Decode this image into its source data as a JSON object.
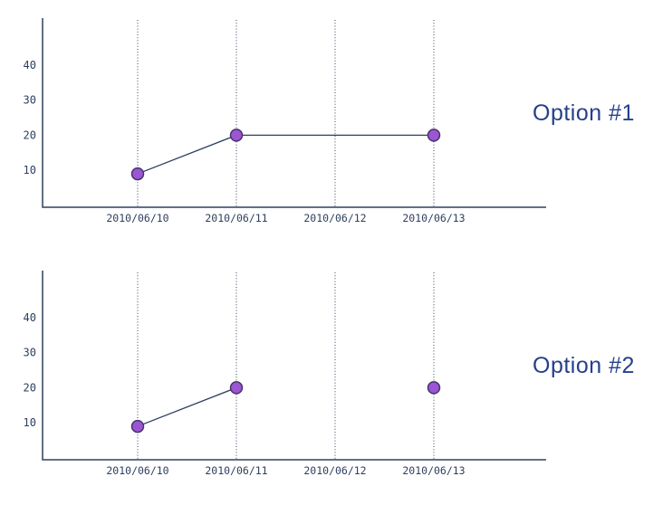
{
  "colors": {
    "axis": "#2e405f",
    "gridline": "#33445f",
    "series_line": "#2e405f",
    "tick_text": "#2e3f5e",
    "point_fill": "#9c55d4",
    "point_stroke": "#463569",
    "option_text": "#26418a"
  },
  "chart_data": [
    {
      "type": "line",
      "label": "Option #1",
      "x_categories": [
        "2010/06/10",
        "2010/06/11",
        "2010/06/12",
        "2010/06/13"
      ],
      "y_ticks": [
        10,
        20,
        30,
        40
      ],
      "ylim": [
        0,
        53
      ],
      "grid": "vertical-dotted",
      "legend": "none",
      "points": [
        {
          "x": "2010/06/10",
          "y": 9
        },
        {
          "x": "2010/06/11",
          "y": 20
        },
        {
          "x": "2010/06/13",
          "y": 20
        }
      ],
      "connections": [
        [
          0,
          1
        ],
        [
          1,
          2
        ]
      ]
    },
    {
      "type": "line",
      "label": "Option #2",
      "x_categories": [
        "2010/06/10",
        "2010/06/11",
        "2010/06/12",
        "2010/06/13"
      ],
      "y_ticks": [
        10,
        20,
        30,
        40
      ],
      "ylim": [
        0,
        53
      ],
      "grid": "vertical-dotted",
      "legend": "none",
      "points": [
        {
          "x": "2010/06/10",
          "y": 9
        },
        {
          "x": "2010/06/11",
          "y": 20
        },
        {
          "x": "2010/06/13",
          "y": 20
        }
      ],
      "connections": [
        [
          0,
          1
        ]
      ]
    }
  ]
}
